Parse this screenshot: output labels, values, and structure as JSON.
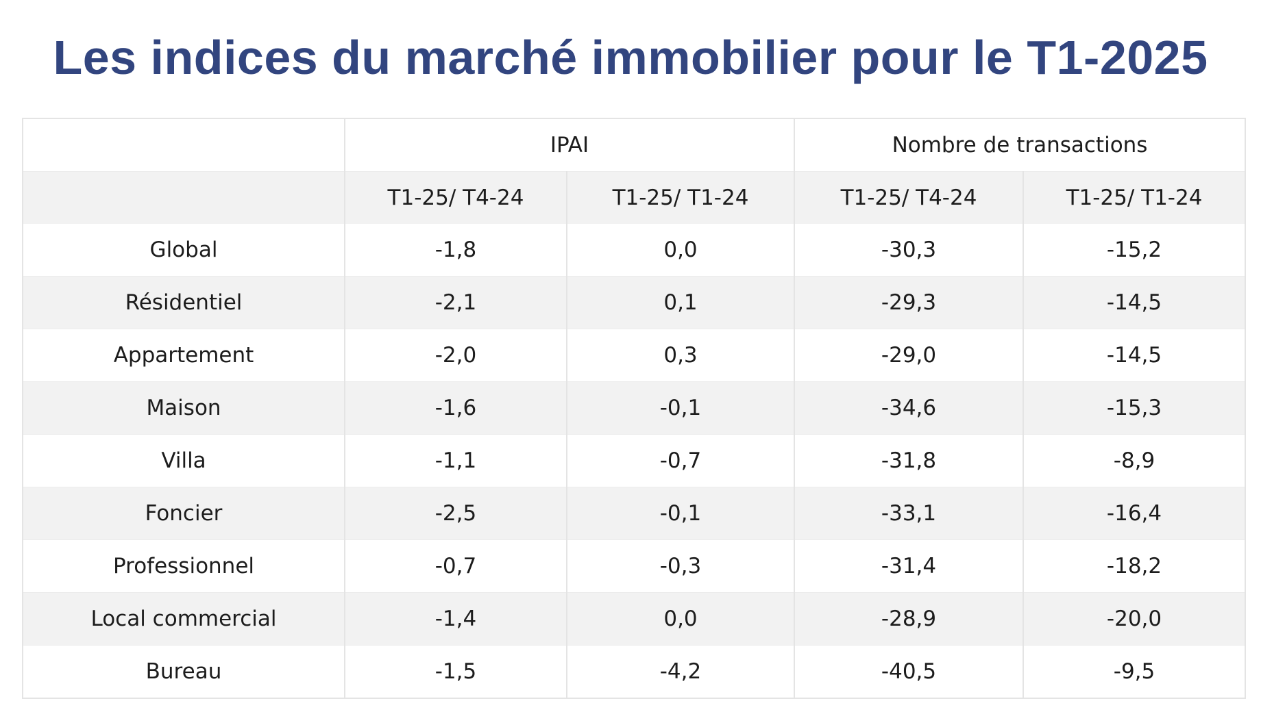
{
  "title": "Les indices du marché immobilier pour le T1-2025",
  "table": {
    "group_headers": [
      "",
      "IPAI",
      "Nombre de transactions"
    ],
    "sub_headers": [
      "",
      "T1-25/ T4-24",
      "T1-25/ T1-24",
      "T1-25/ T4-24",
      "T1-25/ T1-24"
    ],
    "rows": [
      {
        "label": "Global",
        "values": [
          "-1,8",
          "0,0",
          "-30,3",
          "-15,2"
        ]
      },
      {
        "label": "Résidentiel",
        "values": [
          "-2,1",
          "0,1",
          "-29,3",
          "-14,5"
        ]
      },
      {
        "label": "Appartement",
        "values": [
          "-2,0",
          "0,3",
          "-29,0",
          "-14,5"
        ]
      },
      {
        "label": "Maison",
        "values": [
          "-1,6",
          "-0,1",
          "-34,6",
          "-15,3"
        ]
      },
      {
        "label": "Villa",
        "values": [
          "-1,1",
          "-0,7",
          "-31,8",
          "-8,9"
        ]
      },
      {
        "label": "Foncier",
        "values": [
          "-2,5",
          "-0,1",
          "-33,1",
          "-16,4"
        ]
      },
      {
        "label": "Professionnel",
        "values": [
          "-0,7",
          "-0,3",
          "-31,4",
          "-18,2"
        ]
      },
      {
        "label": "Local commercial",
        "values": [
          "-1,4",
          "0,0",
          "-28,9",
          "-20,0"
        ]
      },
      {
        "label": "Bureau",
        "values": [
          "-1,5",
          "-4,2",
          "-40,5",
          "-9,5"
        ]
      }
    ]
  },
  "colors": {
    "title": "#32457f",
    "row_shade": "#f2f2f2",
    "grid": "#e4e4e4"
  }
}
